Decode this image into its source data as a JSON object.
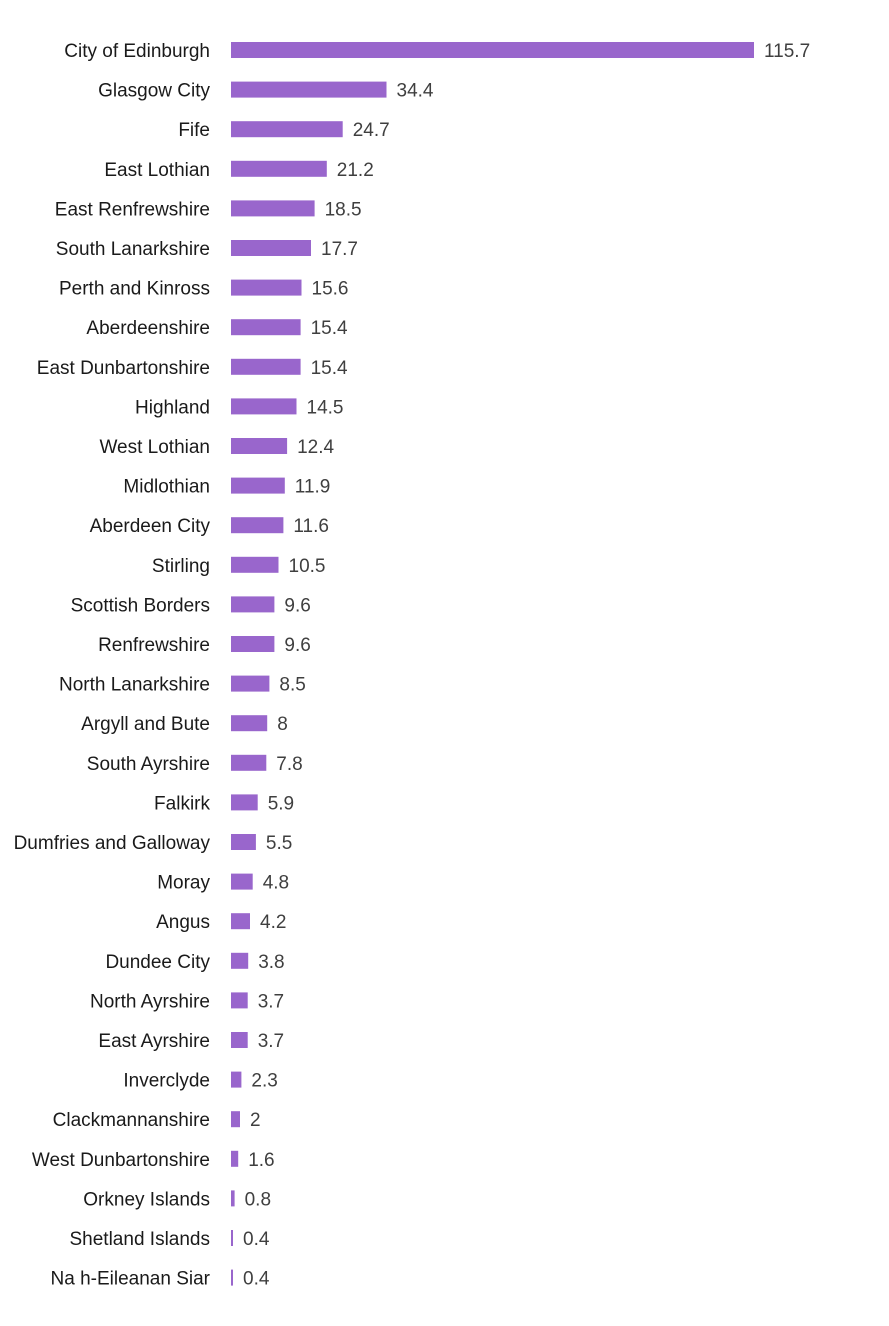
{
  "chart_data": {
    "type": "bar",
    "orientation": "horizontal",
    "bar_color": "#9966cc",
    "grid": false,
    "legend": "none",
    "categories": [
      "City of Edinburgh",
      "Glasgow City",
      "Fife",
      "East Lothian",
      "East Renfrewshire",
      "South Lanarkshire",
      "Perth and Kinross",
      "Aberdeenshire",
      "East Dunbartonshire",
      "Highland",
      "West Lothian",
      "Midlothian",
      "Aberdeen City",
      "Stirling",
      "Scottish Borders",
      "Renfrewshire",
      "North Lanarkshire",
      "Argyll and Bute",
      "South Ayrshire",
      "Falkirk",
      "Dumfries and Galloway",
      "Moray",
      "Angus",
      "Dundee City",
      "North Ayrshire",
      "East Ayrshire",
      "Inverclyde",
      "Clackmannanshire",
      "West Dunbartonshire",
      "Orkney Islands",
      "Shetland Islands",
      "Na h-Eileanan Siar"
    ],
    "values": [
      115.7,
      34.4,
      24.7,
      21.2,
      18.5,
      17.7,
      15.6,
      15.4,
      15.4,
      14.5,
      12.4,
      11.9,
      11.6,
      10.5,
      9.6,
      9.6,
      8.5,
      8,
      7.8,
      5.9,
      5.5,
      4.8,
      4.2,
      3.8,
      3.7,
      3.7,
      2.3,
      2,
      1.6,
      0.8,
      0.4,
      0.4
    ],
    "value_labels": [
      "115.7",
      "34.4",
      "24.7",
      "21.2",
      "18.5",
      "17.7",
      "15.6",
      "15.4",
      "15.4",
      "14.5",
      "12.4",
      "11.9",
      "11.6",
      "10.5",
      "9.6",
      "9.6",
      "8.5",
      "8",
      "7.8",
      "5.9",
      "5.5",
      "4.8",
      "4.2",
      "3.8",
      "3.7",
      "3.7",
      "2.3",
      "2",
      "1.6",
      "0.8",
      "0.4",
      "0.4"
    ],
    "xlim": [
      0,
      115.7
    ]
  }
}
